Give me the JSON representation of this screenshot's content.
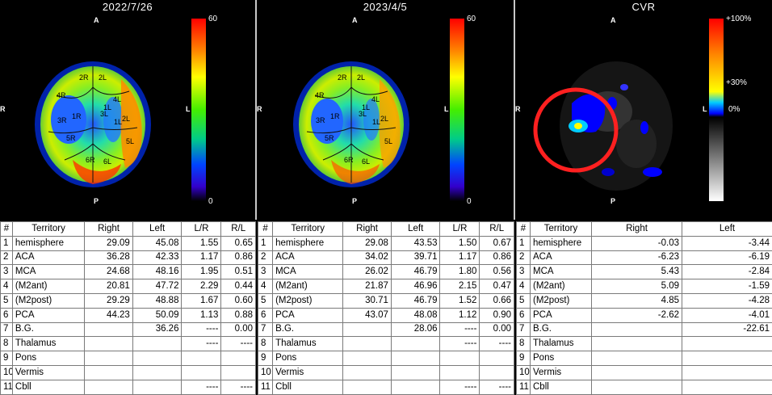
{
  "panels": [
    {
      "title": "2022/7/26",
      "orient": {
        "top": "A",
        "bottom": "P",
        "left": "R",
        "right": "L"
      },
      "colorbar": {
        "max": "60",
        "min": "0"
      },
      "regions": [
        "2R",
        "2L",
        "4R",
        "1R",
        "1L",
        "3R",
        "3L",
        "1L",
        "2L",
        "5R",
        "4L",
        "5L",
        "6R",
        "6L"
      ]
    },
    {
      "title": "2023/4/5",
      "orient": {
        "top": "A",
        "bottom": "P",
        "left": "R",
        "right": "L"
      },
      "colorbar": {
        "max": "60",
        "min": "0"
      },
      "regions": [
        "2R",
        "2L",
        "4R",
        "1R",
        "1L",
        "3R",
        "3L",
        "1L",
        "2L",
        "5R",
        "4L",
        "5L",
        "6R",
        "6L"
      ]
    },
    {
      "title": "CVR",
      "orient": {
        "top": "A",
        "bottom": "P",
        "left": "R",
        "right": "L"
      },
      "colorbar": {
        "max": "+100%",
        "mid": "+30%",
        "zero": "0%"
      }
    }
  ],
  "tables": [
    {
      "headers": [
        "#",
        "Territory",
        "Right",
        "Left",
        "L/R",
        "R/L"
      ],
      "rows": [
        [
          "1",
          "hemisphere",
          "29.09",
          "45.08",
          "1.55",
          "0.65"
        ],
        [
          "2",
          "ACA",
          "36.28",
          "42.33",
          "1.17",
          "0.86"
        ],
        [
          "3",
          "MCA",
          "24.68",
          "48.16",
          "1.95",
          "0.51"
        ],
        [
          "4",
          "(M2ant)",
          "20.81",
          "47.72",
          "2.29",
          "0.44"
        ],
        [
          "5",
          "(M2post)",
          "29.29",
          "48.88",
          "1.67",
          "0.60"
        ],
        [
          "6",
          "PCA",
          "44.23",
          "50.09",
          "1.13",
          "0.88"
        ],
        [
          "7",
          "B.G.",
          "",
          "36.26",
          "----",
          "0.00"
        ],
        [
          "8",
          "Thalamus",
          "",
          "",
          "----",
          "----"
        ],
        [
          "9",
          "Pons",
          "",
          "",
          "",
          ""
        ],
        [
          "10",
          "Vermis",
          "",
          "",
          "",
          ""
        ],
        [
          "11",
          "Cbll",
          "",
          "",
          "----",
          "----"
        ]
      ]
    },
    {
      "headers": [
        "#",
        "Territory",
        "Right",
        "Left",
        "L/R",
        "R/L"
      ],
      "rows": [
        [
          "1",
          "hemisphere",
          "29.08",
          "43.53",
          "1.50",
          "0.67"
        ],
        [
          "2",
          "ACA",
          "34.02",
          "39.71",
          "1.17",
          "0.86"
        ],
        [
          "3",
          "MCA",
          "26.02",
          "46.79",
          "1.80",
          "0.56"
        ],
        [
          "4",
          "(M2ant)",
          "21.87",
          "46.96",
          "2.15",
          "0.47"
        ],
        [
          "5",
          "(M2post)",
          "30.71",
          "46.79",
          "1.52",
          "0.66"
        ],
        [
          "6",
          "PCA",
          "43.07",
          "48.08",
          "1.12",
          "0.90"
        ],
        [
          "7",
          "B.G.",
          "",
          "28.06",
          "----",
          "0.00"
        ],
        [
          "8",
          "Thalamus",
          "",
          "",
          "----",
          "----"
        ],
        [
          "9",
          "Pons",
          "",
          "",
          "",
          ""
        ],
        [
          "10",
          "Vermis",
          "",
          "",
          "",
          ""
        ],
        [
          "11",
          "Cbll",
          "",
          "",
          "----",
          "----"
        ]
      ]
    },
    {
      "headers": [
        "#",
        "Territory",
        "Right",
        "Left"
      ],
      "rows": [
        [
          "1",
          "hemisphere",
          "-0.03",
          "-3.44"
        ],
        [
          "2",
          "ACA",
          "-6.23",
          "-6.19"
        ],
        [
          "3",
          "MCA",
          "5.43",
          "-2.84"
        ],
        [
          "4",
          "(M2ant)",
          "5.09",
          "-1.59"
        ],
        [
          "5",
          "(M2post)",
          "4.85",
          "-4.28"
        ],
        [
          "6",
          "PCA",
          "-2.62",
          "-4.01"
        ],
        [
          "7",
          "B.G.",
          "",
          "-22.61"
        ],
        [
          "8",
          "Thalamus",
          "",
          ""
        ],
        [
          "9",
          "Pons",
          "",
          ""
        ],
        [
          "10",
          "Vermis",
          "",
          ""
        ],
        [
          "11",
          "Cbll",
          "",
          ""
        ]
      ]
    }
  ]
}
